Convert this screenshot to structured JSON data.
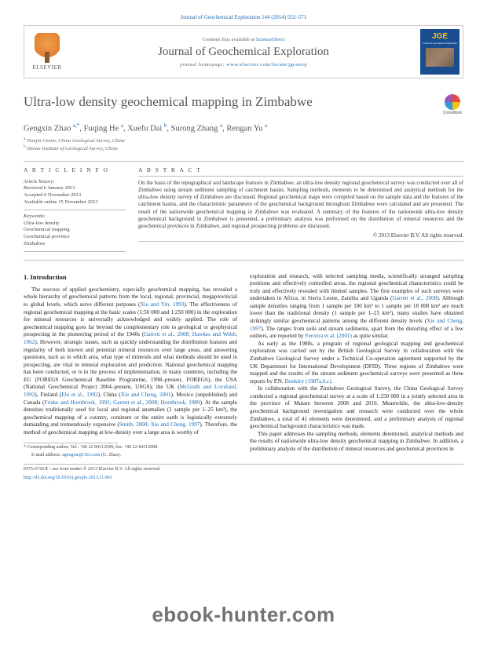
{
  "citation": "Journal of Geochemical Exploration 144 (2014) 552–571",
  "header": {
    "contents_prefix": "Contents lists available at ",
    "contents_link": "ScienceDirect",
    "journal_name": "Journal of Geochemical Exploration",
    "homepage_prefix": "journal homepage: ",
    "homepage_url": "www.elsevier.com/locate/jgeoexp",
    "elsevier": "ELSEVIER",
    "cover_initials": "JGE",
    "cover_sub": "Journal of Geochemical Exploration"
  },
  "article": {
    "title": "Ultra-low density geochemical mapping in Zimbabwe",
    "crossmark": "CrossMark",
    "authors_html": "Gengxin Zhao",
    "a1_sup": "a,*",
    "a2": ", Fuqing He ",
    "a2_sup": "a",
    "a3": ", Xuefu Dai ",
    "a3_sup": "b",
    "a4": ", Surong Zhang ",
    "a4_sup": "a",
    "a5": ", Rengan Yu ",
    "a5_sup": "a",
    "aff_a_sup": "a",
    "aff_a": " Tianjin Center, China Geological Survey, China",
    "aff_b_sup": "b",
    "aff_b": " Henan Institute of Geological Survey, China"
  },
  "info": {
    "heading": "A R T I C L E   I N F O",
    "history_label": "Article history:",
    "received": "Received 6 January 2013",
    "accepted": "Accepted 6 November 2013",
    "online": "Available online 15 November 2013",
    "keywords_label": "Keywords:",
    "kw1": "Ultra-low density",
    "kw2": "Geochemical mapping",
    "kw3": "Geochemical province",
    "kw4": "Zimbabwe"
  },
  "abstract": {
    "heading": "A B S T R A C T",
    "text": "On the basis of the topographical and landscape features in Zimbabwe, an ultra-low density regional geochemical survey was conducted over all of Zimbabwe using stream sediment sampling of catchment basins. Sampling methods, elements to be determined and analytical methods for the ultra-low density survey of Zimbabwe are discussed. Regional geochemical maps were compiled based on the sample data and the features of the catchment basins, and the characteristic parameters of the geochemical background throughout Zimbabwe were calculated and are presented. The result of the nationwide geochemical mapping in Zimbabwe was evaluated. A summary of the features of the nationwide ultra-low density geochemical background in Zimbabwe is presented, a preliminary analysis was performed on the distribution of mineral resources and the geochemical provinces in Zimbabwe, and regional prospecting problems are discussed.",
    "copyright": "© 2013 Elsevier B.V. All rights reserved."
  },
  "body": {
    "section1_heading": "1. Introduction",
    "col1_p1a": "The success of applied geochemistry, especially geochemical mapping, has revealed a whole hierarchy of geochemical patterns from the local, regional, provincial, megaprovincial to global levels, which serve different purposes (",
    "col1_r1": "Xie and Yin, 1993",
    "col1_p1b": "). The effectiveness of regional geochemical mapping at the basic scales (1:50 000 and 1:250 000) in the exploration for mineral resources is universally acknowledged and widely applied. The role of geochemical mapping goes far beyond the complementary role to geological or geophysical prospecting in the pioneering period of the 1940s (",
    "col1_r2": "Garrett et al., 2008; Hawkes and Webb, 1962",
    "col1_p1c": "). However, strategic issues, such as quickly understanding the distribution features and regularity of both known and potential mineral resources over large areas, and answering questions, such as in which area, what type of minerals and what methods should be used in prospecting, are vital in mineral exploration and prediction. National geochemical mapping has been conducted, or is in the process of implementation, in many countries, including the EU (FOREGS Geochemical Baseline Programme, 1998–present, FOREGS), the USA (National Geochemical Project 2004–present, USGS); the UK (",
    "col1_r3": "McGrath and Loveland, 1992",
    "col1_p1d": "), Finland (",
    "col1_r4": "Elo et al., 1992",
    "col1_p1e": "), China (",
    "col1_r5": "Xie and Cheng, 2001",
    "col1_p1f": "), Mexico (unpublished) and Canada (",
    "col1_r6": "Friske and Hornbrook, 1991; Garrett et al., 2008; Hornbrook, 1989",
    "col1_p1g": "). At the sample densities traditionally used for local and regional anomalies (1 sample per 1–25 km²), the geochemical mapping of a country, continent or the entire earth is logistically extremely demanding and tremendously expensive (",
    "col1_r7": "Smith, 2008; Xie and Cheng, 1997",
    "col1_p1h": "). Therefore, the method of geochemical mapping at low-density over a large area is worthy of",
    "col2_p1a": "exploration and research, with selected sampling media, scientifically arranged sampling positions and effectively controlled areas, the regional geochemical characteristics could be truly and effectively revealed with limited samples. The first examples of such surveys were undertaken in Africa, in Sierra Leone, Zambia and Uganda (",
    "col2_r1": "Garrett et al., 2008",
    "col2_p1b": "). Although sample densities ranging from 1 sample per 100 km² to 1 sample per 18 000 km² are much lower than the traditional density (1 sample per 1–25 km²), many studies have obtained strikingly similar geochemical patterns among the different density levels (",
    "col2_r2": "Xie and Cheng, 1997",
    "col2_p1c": "). The ranges from soils and stream sediments, apart from the distorting effect of a few outliers, are reported by ",
    "col2_r3": "Ferreira et al. (2001)",
    "col2_p1d": " as quite similar.",
    "col2_p2": "As early as the 1980s, a program of regional geological mapping and geochemical exploration was carried out by the British Geological Survey in collaboration with the Zimbabwe Geological Survey under a Technical Co-operation agreement supported by the UK Department for International Development (DFID). Three regions of Zimbabwe were mapped and the results of the stream sediment geochemical surveys were presented as three reports by P.N. ",
    "col2_r4": "Dunkley (1987a,b,c)",
    "col2_p2b": ".",
    "col2_p3": "In collaboration with the Zimbabwe Geological Survey, the China Geological Survey conducted a regional geochemical survey at a scale of 1:250 000 in a jointly selected area in the province of Mutare between 2008 and 2010. Meanwhile, the ultra-low-density geochemical background investigation and research were conducted over the whole Zimbabwe, a total of 41 elements were determined, and a preliminary analysis of regional geochemical background characteristics was made.",
    "col2_p4": "This paper addresses the sampling methods, elements determined, analytical methods and the results of nationwide ultra-low density geochemical mapping in Zimbabwe. In addition, a preliminary analysis of the distribution of mineral resources and geochemical provinces in"
  },
  "footnote": {
    "corr": "* Corresponding author. Tel.: +86 22 84112949; fax: +86 22 84112988.",
    "email_label": "E-mail address: ",
    "email": "zgengxin@163.com",
    "email_suffix": " (G. Zhao)."
  },
  "bottom": {
    "issn": "0375-6742/$ – see front matter © 2013 Elsevier B.V. All rights reserved.",
    "doi": "http://dx.doi.org/10.1016/j.gexplo.2013.11.001"
  },
  "watermark": "ebook-hunter.com"
}
